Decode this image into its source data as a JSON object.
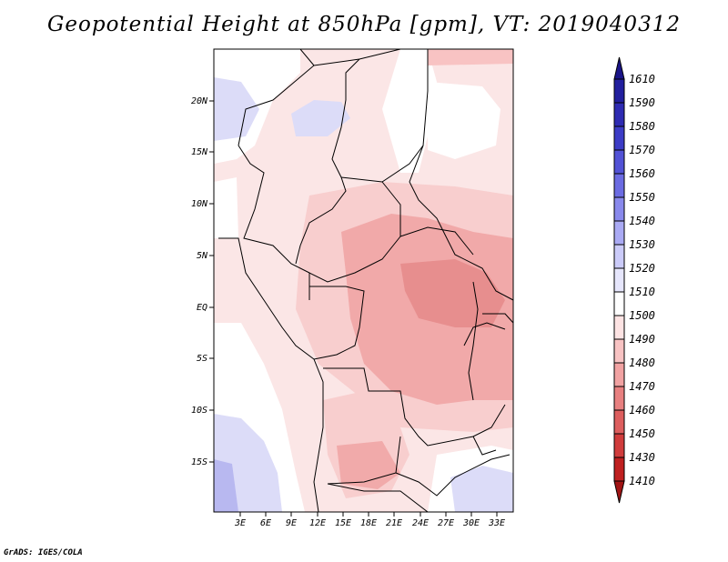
{
  "title": "Geopotential Height at 850hPa [gpm], VT: 2019040312",
  "credit": "GrADS: IGES/COLA",
  "map": {
    "lat_ticks": [
      "20N",
      "15N",
      "10N",
      "5N",
      "EQ",
      "5S",
      "10S",
      "15S"
    ],
    "lon_ticks": [
      "3E",
      "6E",
      "9E",
      "12E",
      "15E",
      "18E",
      "21E",
      "24E",
      "27E",
      "30E",
      "33E"
    ]
  },
  "colorbar": {
    "labels": [
      "1610",
      "1590",
      "1580",
      "1570",
      "1560",
      "1550",
      "1540",
      "1530",
      "1520",
      "1510",
      "1500",
      "1490",
      "1480",
      "1470",
      "1460",
      "1450",
      "1430",
      "1410"
    ],
    "colors": [
      "#1a1488",
      "#221f9e",
      "#2e2bb2",
      "#3c3cc6",
      "#5252d6",
      "#6b6be2",
      "#8989ec",
      "#aaaaf4",
      "#cbcbf9",
      "#e6e6fc",
      "#ffffff",
      "#fde3e3",
      "#f8c3c3",
      "#f1a2a2",
      "#e88080",
      "#dd5e5e",
      "#d03c3c",
      "#bf2020",
      "#a11414"
    ]
  }
}
